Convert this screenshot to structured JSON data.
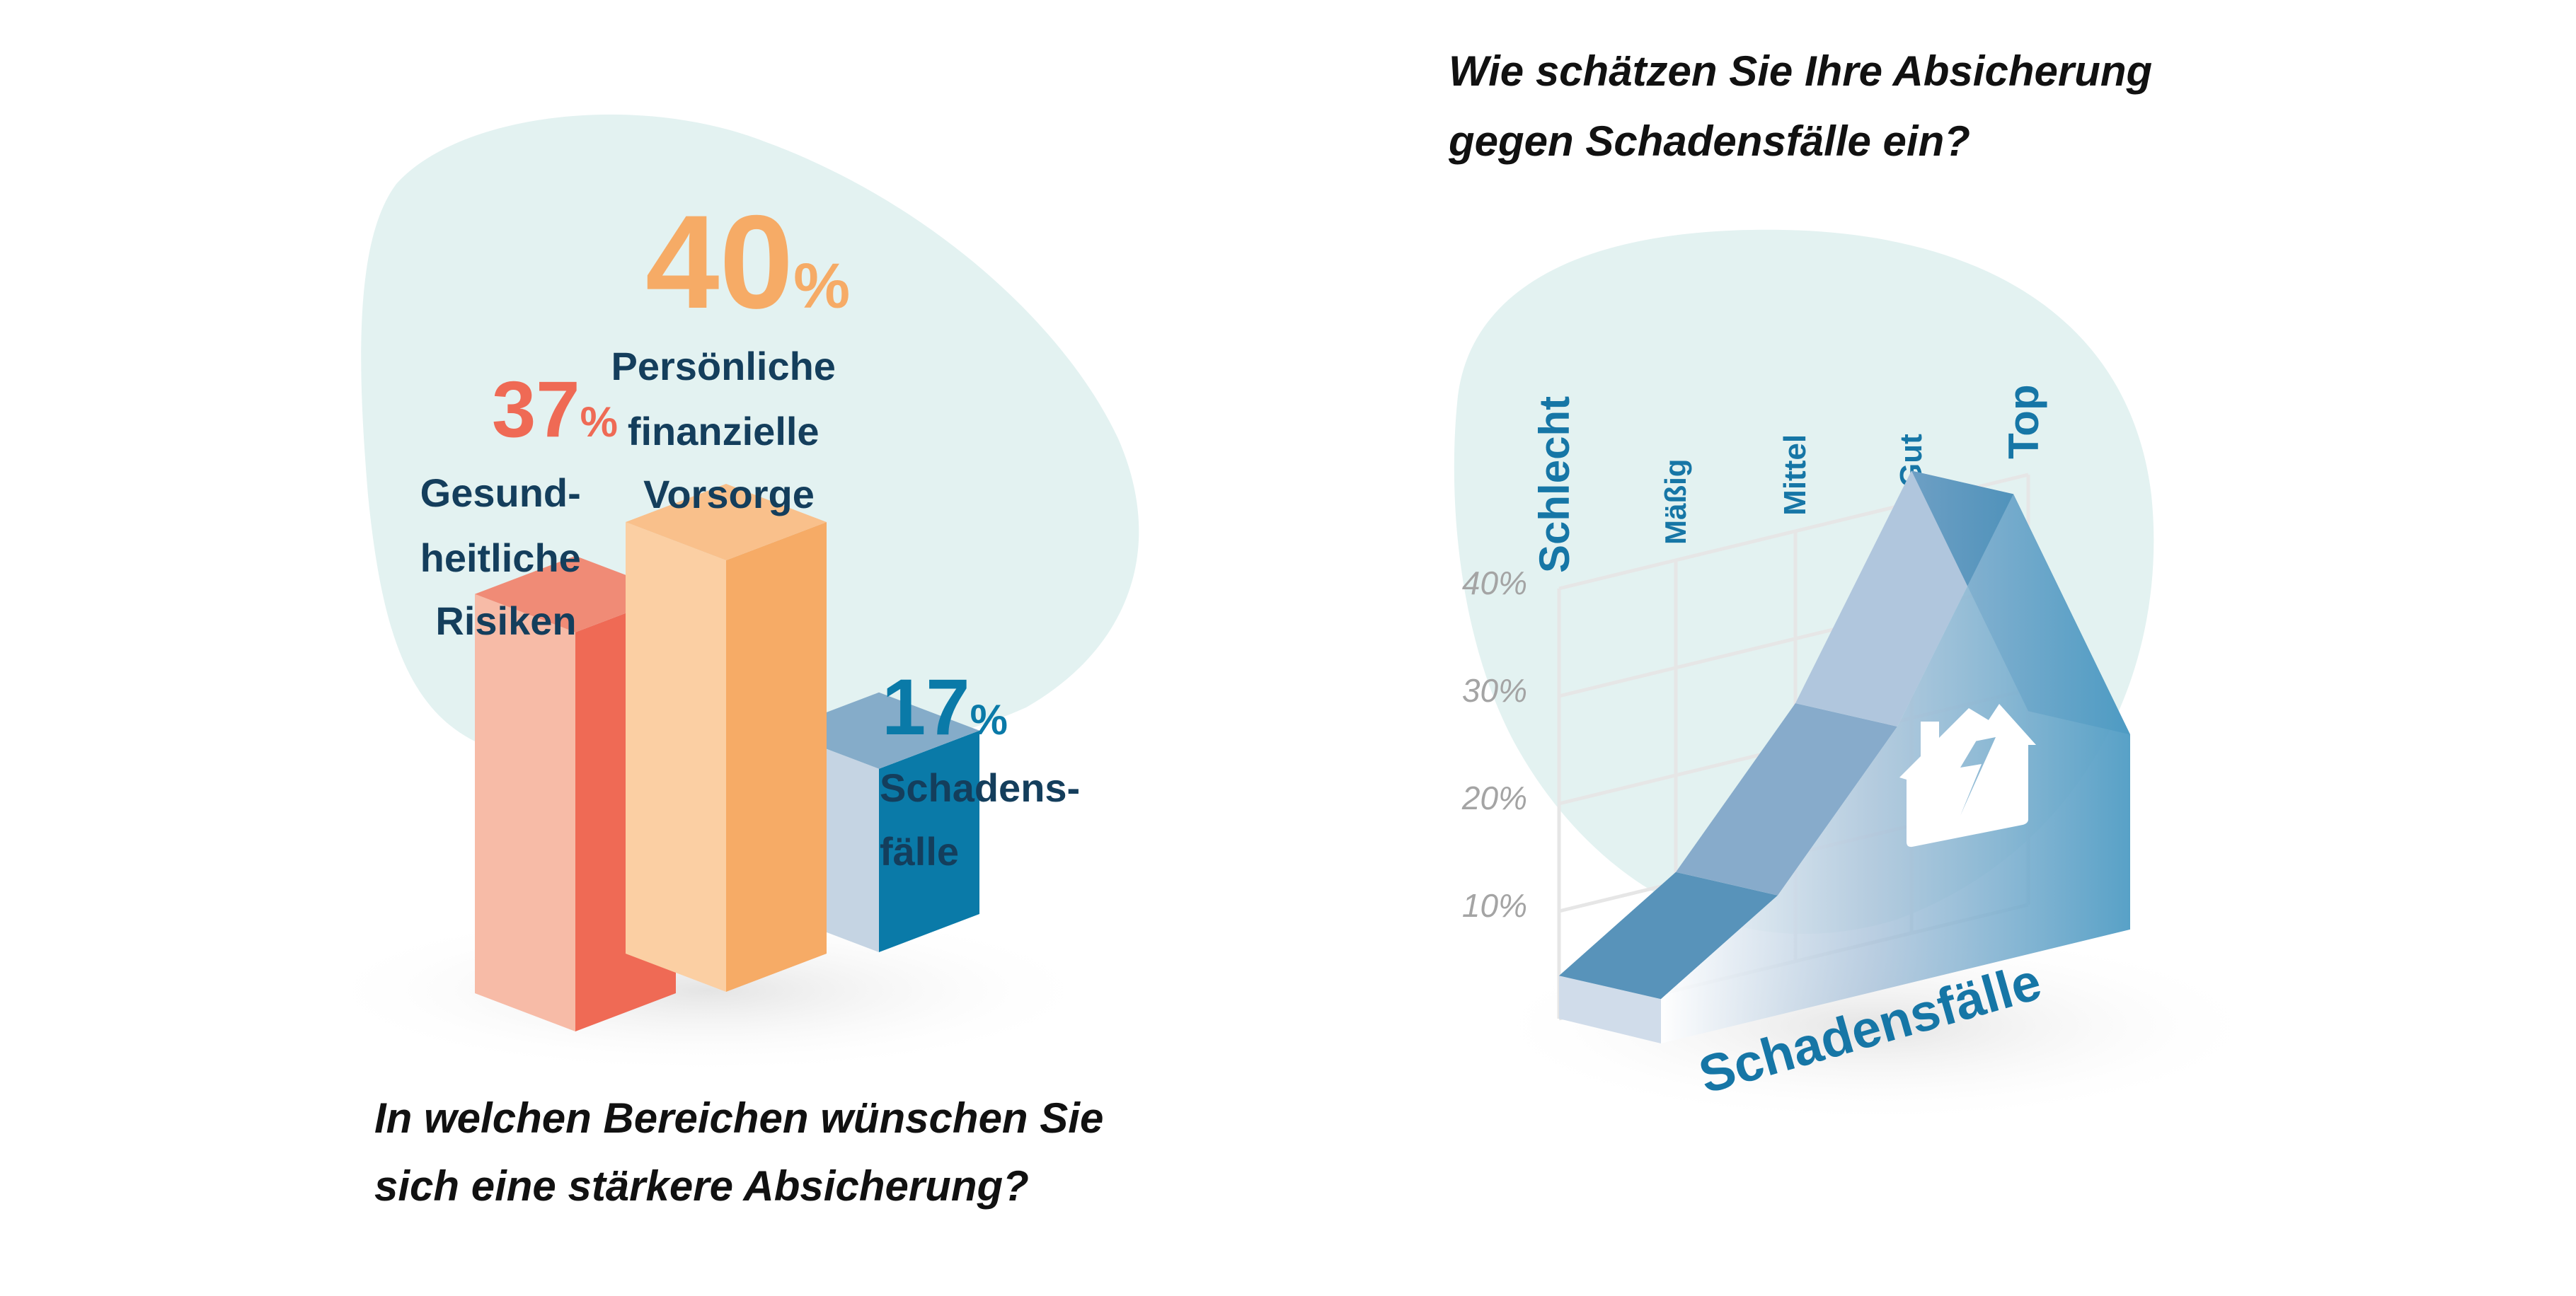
{
  "colors": {
    "blob": "#e3f2f1",
    "label_dark": "#143e5c",
    "health": "#ef6a55",
    "pension": "#f6ab66",
    "damage": "#0a7aa8",
    "area_blue": "#5893ba"
  },
  "chart_data": [
    {
      "type": "bar",
      "question": [
        "In welchen Bereichen wünschen Sie",
        "sich eine stärkere Absicherung?"
      ],
      "categories": [
        {
          "value_label": "37",
          "unit": "%",
          "label_lines": [
            "Gesund-",
            "heitliche",
            "Risiken"
          ]
        },
        {
          "value_label": "40",
          "unit": "%",
          "label_lines": [
            "Persönliche",
            "finanzielle",
            "Vorsorge"
          ]
        },
        {
          "value_label": "17",
          "unit": "%",
          "label_lines": [
            "Schadens-",
            "fälle"
          ]
        }
      ],
      "values": [
        37,
        40,
        17
      ],
      "style": "3d-isometric"
    },
    {
      "type": "area",
      "question": [
        "Wie schätzen Sie Ihre Absicherung",
        "gegen Schadensfälle ein?"
      ],
      "categories": [
        "Schlecht",
        "Mäßig",
        "Mittel",
        "Gut",
        "Top"
      ],
      "series": [
        {
          "name": "Schadensfälle",
          "values": [
            4,
            11,
            24,
            43,
            18
          ]
        }
      ],
      "yticks": [
        "10%",
        "20%",
        "30%",
        "40%"
      ],
      "ylim": [
        0,
        40
      ],
      "grid": true,
      "style": "3d-isometric",
      "icon": "house-lightning-icon"
    }
  ]
}
